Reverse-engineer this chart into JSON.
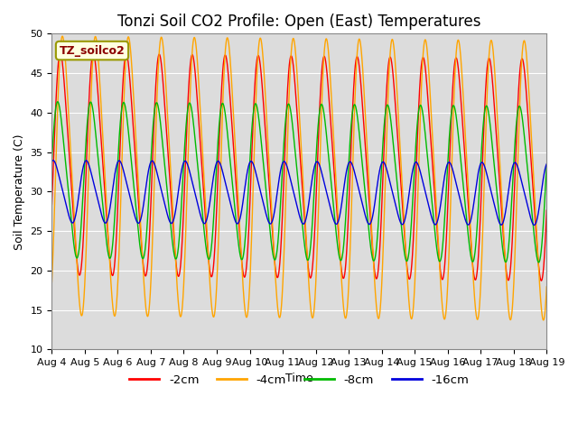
{
  "title": "Tonzi Soil CO2 Profile: Open (East) Temperatures",
  "xlabel": "Time",
  "ylabel": "Soil Temperature (C)",
  "ylim": [
    10,
    50
  ],
  "n_days": 15,
  "x_tick_labels": [
    "Aug 4",
    "Aug 5",
    "Aug 6",
    "Aug 7",
    "Aug 8",
    "Aug 9",
    "Aug 10",
    "Aug 11",
    "Aug 12",
    "Aug 13",
    "Aug 14",
    "Aug 15",
    "Aug 16",
    "Aug 17",
    "Aug 18",
    "Aug 19"
  ],
  "legend_label": "TZ_soilco2",
  "series": [
    {
      "label": "-2cm",
      "color": "#ff0000",
      "mean": 33.5,
      "amplitude": 13.5,
      "phase_shift": -0.3,
      "trend": -0.05
    },
    {
      "label": "-4cm",
      "color": "#ffa500",
      "mean": 32.0,
      "amplitude": 17.0,
      "phase_shift": -0.7,
      "trend": -0.04
    },
    {
      "label": "-8cm",
      "color": "#00bb00",
      "mean": 31.5,
      "amplitude": 9.5,
      "phase_shift": 0.2,
      "trend": -0.04
    },
    {
      "label": "-16cm",
      "color": "#0000dd",
      "mean": 30.0,
      "amplitude": 3.8,
      "phase_shift": 1.05,
      "trend": -0.02
    }
  ],
  "bg_color": "#dcdcdc",
  "title_fontsize": 12,
  "axis_fontsize": 9,
  "tick_fontsize": 8
}
